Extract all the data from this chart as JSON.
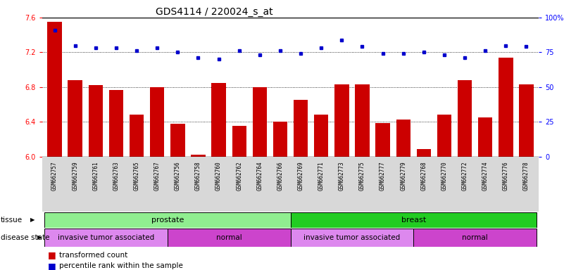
{
  "title": "GDS4114 / 220024_s_at",
  "samples": [
    "GSM662757",
    "GSM662759",
    "GSM662761",
    "GSM662763",
    "GSM662765",
    "GSM662767",
    "GSM662756",
    "GSM662758",
    "GSM662760",
    "GSM662762",
    "GSM662764",
    "GSM662766",
    "GSM662769",
    "GSM662771",
    "GSM662773",
    "GSM662775",
    "GSM662777",
    "GSM662779",
    "GSM662768",
    "GSM662770",
    "GSM662772",
    "GSM662774",
    "GSM662776",
    "GSM662778"
  ],
  "bar_values": [
    7.55,
    6.88,
    6.82,
    6.77,
    6.48,
    6.8,
    6.38,
    6.02,
    6.85,
    6.35,
    6.8,
    6.4,
    6.65,
    6.48,
    6.83,
    6.83,
    6.39,
    6.43,
    6.09,
    6.48,
    6.88,
    6.45,
    7.14,
    6.83
  ],
  "dot_values": [
    91,
    80,
    78,
    78,
    76,
    78,
    75,
    71,
    70,
    76,
    73,
    76,
    74,
    78,
    84,
    79,
    74,
    74,
    75,
    73,
    71,
    76,
    80,
    79
  ],
  "ylim_left": [
    6.0,
    7.6
  ],
  "ylim_right": [
    0,
    100
  ],
  "yticks_left": [
    6.0,
    6.4,
    6.8,
    7.2,
    7.6
  ],
  "yticks_right": [
    0,
    25,
    50,
    75,
    100
  ],
  "ytick_labels_right": [
    "0",
    "25",
    "50",
    "75",
    "100%"
  ],
  "bar_color": "#cc0000",
  "dot_color": "#0000cc",
  "grid_values": [
    6.4,
    6.8,
    7.2
  ],
  "tissue_color_prostate": "#90EE90",
  "tissue_color_breast": "#22cc22",
  "disease_color_invasive": "#dd88ee",
  "disease_color_normal": "#cc44cc",
  "title_fontsize": 10,
  "tick_fontsize": 6,
  "label_fontsize": 7.5
}
